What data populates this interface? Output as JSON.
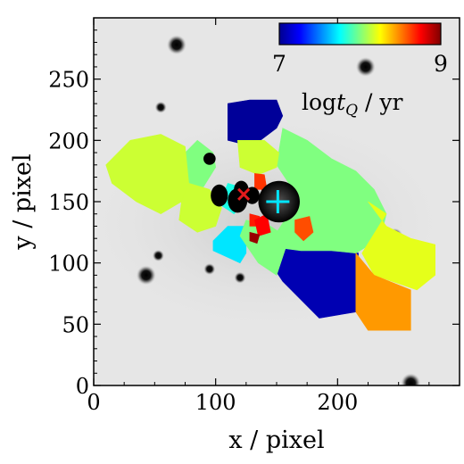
{
  "chart_data": {
    "type": "heatmap",
    "title": "",
    "xlabel": "x / pixel",
    "ylabel": "y / pixel",
    "xlim": [
      0,
      300
    ],
    "ylim": [
      0,
      300
    ],
    "x_ticks": [
      0,
      100,
      200
    ],
    "y_ticks": [
      0,
      50,
      100,
      150,
      200,
      250
    ],
    "grid": false,
    "colorbar": {
      "label_prefix": "log",
      "label_var": "t",
      "label_sub": "Q",
      "label_unit": " / yr",
      "min": 7,
      "max": 9,
      "min_label": "7",
      "max_label": "9",
      "colormap": "jet",
      "placement": "top-right"
    },
    "background": "grayscale galaxy image",
    "markers": [
      {
        "shape": "x",
        "color": "#e41a1c",
        "x": 123,
        "y": 156
      },
      {
        "shape": "+",
        "color": "#00e5ff",
        "x": 151,
        "y": 150
      }
    ],
    "regions": [
      {
        "value": 7.05,
        "points": [
          [
            110,
            230
          ],
          [
            128,
            233
          ],
          [
            150,
            233
          ],
          [
            155,
            220
          ],
          [
            150,
            210
          ],
          [
            130,
            195
          ],
          [
            110,
            200
          ]
        ]
      },
      {
        "value": 7.1,
        "points": [
          [
            145,
            118
          ],
          [
            155,
            112
          ],
          [
            170,
            110
          ],
          [
            195,
            110
          ],
          [
            217,
            108
          ],
          [
            215,
            60
          ],
          [
            185,
            55
          ],
          [
            155,
            85
          ],
          [
            145,
            100
          ]
        ]
      },
      {
        "value": 7.7,
        "points": [
          [
            110,
            130
          ],
          [
            98,
            118
          ],
          [
            98,
            110
          ],
          [
            120,
            100
          ],
          [
            125,
            108
          ],
          [
            125,
            130
          ]
        ]
      },
      {
        "value": 7.8,
        "points": [
          [
            110,
            165
          ],
          [
            120,
            162
          ],
          [
            124,
            150
          ],
          [
            115,
            140
          ],
          [
            103,
            148
          ]
        ]
      },
      {
        "value": 8.0,
        "points": [
          [
            70,
            172
          ],
          [
            80,
            162
          ],
          [
            90,
            162
          ],
          [
            100,
            178
          ],
          [
            98,
            190
          ],
          [
            85,
            200
          ],
          [
            75,
            190
          ]
        ]
      },
      {
        "value": 8.0,
        "points": [
          [
            155,
            210
          ],
          [
            175,
            200
          ],
          [
            195,
            185
          ],
          [
            215,
            175
          ],
          [
            230,
            160
          ],
          [
            240,
            140
          ],
          [
            235,
            120
          ],
          [
            215,
            108
          ],
          [
            195,
            110
          ],
          [
            170,
            110
          ],
          [
            155,
            112
          ],
          [
            150,
            125
          ],
          [
            160,
            140
          ],
          [
            160,
            165
          ],
          [
            150,
            180
          ]
        ]
      },
      {
        "value": 8.0,
        "points": [
          [
            120,
            122
          ],
          [
            135,
            100
          ],
          [
            150,
            90
          ],
          [
            160,
            120
          ],
          [
            145,
            130
          ],
          [
            125,
            135
          ]
        ]
      },
      {
        "value": 8.15,
        "points": [
          [
            10,
            180
          ],
          [
            30,
            200
          ],
          [
            55,
            205
          ],
          [
            75,
            195
          ],
          [
            78,
            165
          ],
          [
            72,
            150
          ],
          [
            55,
            140
          ],
          [
            35,
            150
          ],
          [
            15,
            165
          ]
        ]
      },
      {
        "value": 8.15,
        "points": [
          [
            72,
            150
          ],
          [
            78,
            165
          ],
          [
            95,
            160
          ],
          [
            105,
            145
          ],
          [
            100,
            130
          ],
          [
            85,
            125
          ],
          [
            70,
            135
          ]
        ]
      },
      {
        "value": 8.15,
        "points": [
          [
            118,
            200
          ],
          [
            140,
            200
          ],
          [
            152,
            190
          ],
          [
            150,
            178
          ],
          [
            135,
            172
          ],
          [
            120,
            178
          ]
        ]
      },
      {
        "value": 8.2,
        "points": [
          [
            225,
            150
          ],
          [
            240,
            130
          ],
          [
            260,
            120
          ],
          [
            280,
            115
          ],
          [
            280,
            90
          ],
          [
            265,
            78
          ],
          [
            230,
            90
          ],
          [
            220,
            108
          ],
          [
            240,
            140
          ]
        ]
      },
      {
        "value": 8.45,
        "points": [
          [
            215,
            108
          ],
          [
            230,
            90
          ],
          [
            260,
            78
          ],
          [
            260,
            45
          ],
          [
            225,
            45
          ],
          [
            215,
            60
          ]
        ]
      },
      {
        "value": 8.6,
        "points": [
          [
            165,
            135
          ],
          [
            177,
            138
          ],
          [
            180,
            125
          ],
          [
            172,
            118
          ],
          [
            165,
            125
          ]
        ]
      },
      {
        "value": 8.65,
        "points": [
          [
            132,
            173
          ],
          [
            140,
            172
          ],
          [
            142,
            160
          ],
          [
            132,
            160
          ]
        ]
      },
      {
        "value": 8.7,
        "points": [
          [
            128,
            140
          ],
          [
            136,
            138
          ],
          [
            136,
            130
          ],
          [
            128,
            130
          ]
        ]
      },
      {
        "value": 8.75,
        "points": [
          [
            132,
            135
          ],
          [
            142,
            140
          ],
          [
            145,
            125
          ],
          [
            135,
            122
          ]
        ]
      },
      {
        "value": 8.95,
        "points": [
          [
            128,
            125
          ],
          [
            136,
            123
          ],
          [
            134,
            116
          ],
          [
            128,
            118
          ]
        ]
      },
      {
        "value": 8.95,
        "points": [
          [
            138,
            160
          ],
          [
            145,
            158
          ],
          [
            144,
            148
          ],
          [
            137,
            150
          ]
        ]
      }
    ],
    "black_regions": [
      {
        "cx": 103,
        "cy": 155,
        "rx": 7,
        "ry": 9
      },
      {
        "cx": 118,
        "cy": 151,
        "rx": 8,
        "ry": 10
      },
      {
        "cx": 121,
        "cy": 160,
        "rx": 6,
        "ry": 7
      },
      {
        "cx": 130,
        "cy": 155,
        "rx": 6,
        "ry": 7
      },
      {
        "cx": 95,
        "cy": 185,
        "rx": 5,
        "ry": 5
      }
    ],
    "dark_region": {
      "cx": 152,
      "cy": 150,
      "r": 17
    },
    "stars": [
      {
        "x": 68,
        "y": 278,
        "r": 5
      },
      {
        "x": 223,
        "y": 260,
        "r": 5
      },
      {
        "x": 55,
        "y": 227,
        "r": 3
      },
      {
        "x": 118,
        "y": 215,
        "r": 3
      },
      {
        "x": 247,
        "y": 122,
        "r": 4
      },
      {
        "x": 250,
        "y": 103,
        "r": 5
      },
      {
        "x": 53,
        "y": 106,
        "r": 3
      },
      {
        "x": 43,
        "y": 90,
        "r": 5
      },
      {
        "x": 95,
        "y": 95,
        "r": 3
      },
      {
        "x": 120,
        "y": 88,
        "r": 3
      },
      {
        "x": 260,
        "y": 2,
        "r": 5
      }
    ]
  }
}
